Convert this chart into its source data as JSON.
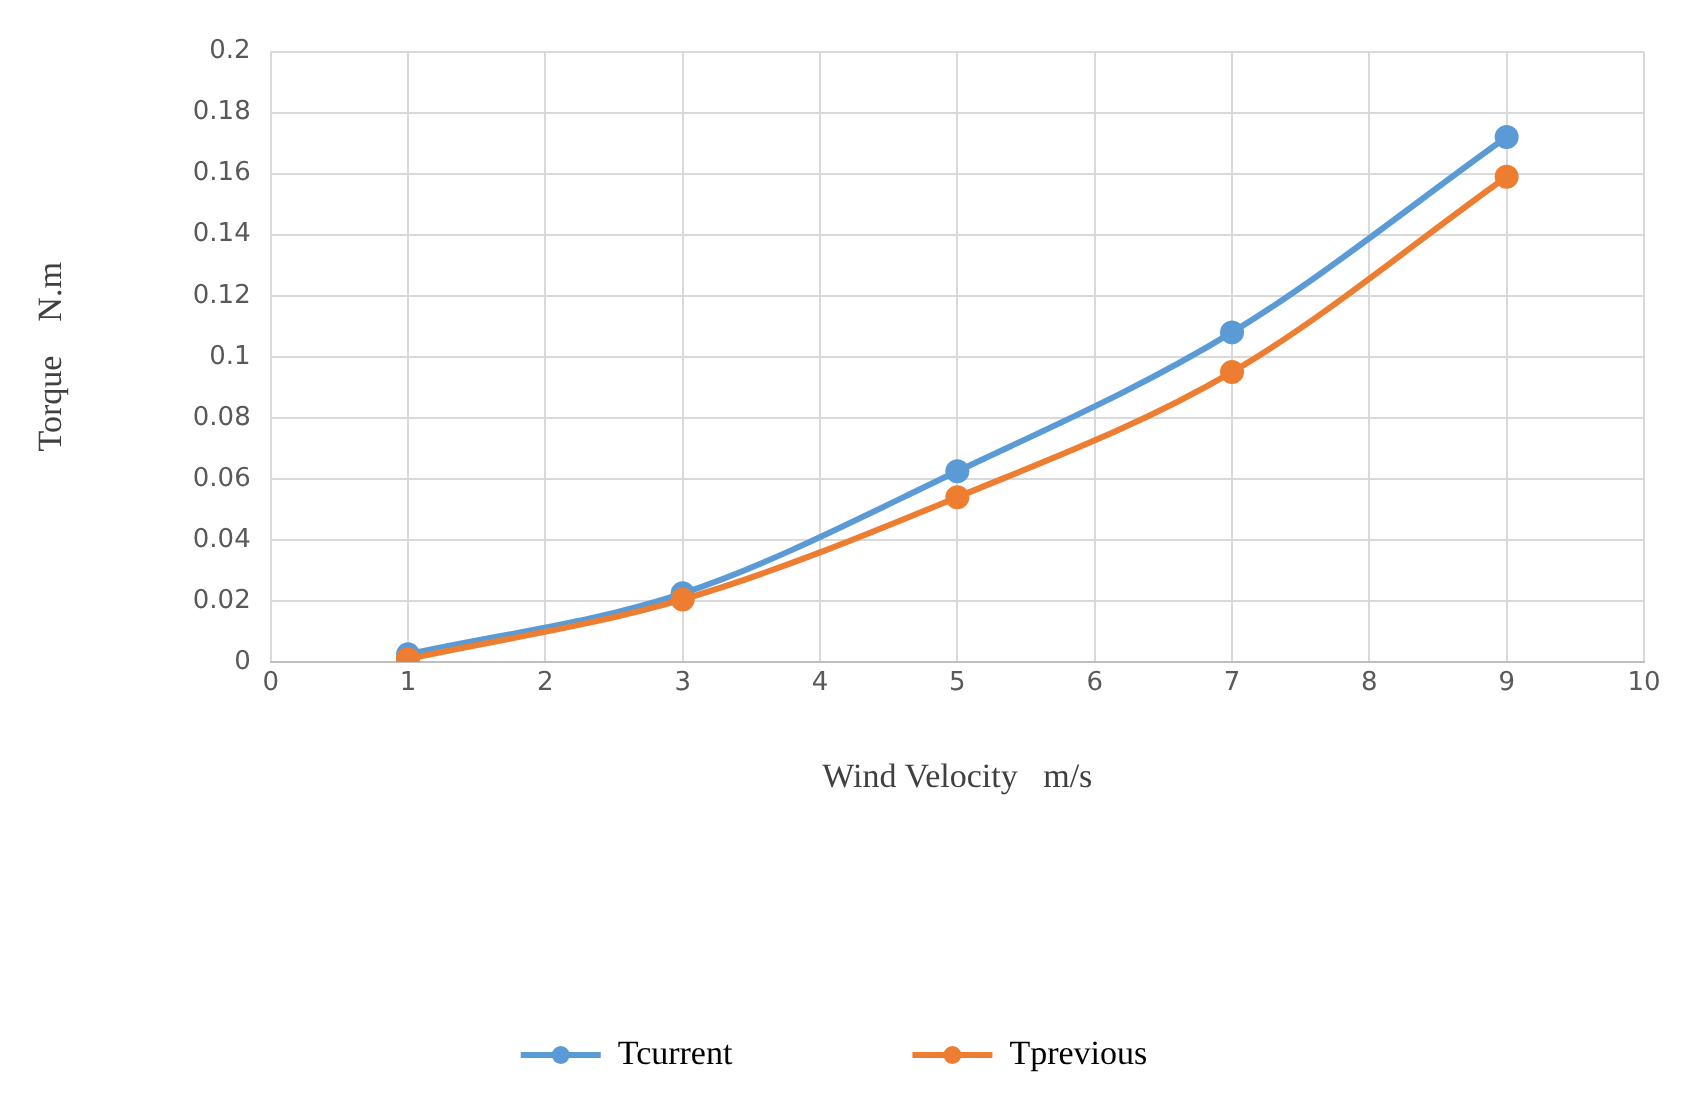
{
  "chart_data": {
    "type": "line",
    "xlabel": "Wind Velocity   m/s",
    "ylabel": "Torque    N.m",
    "x": [
      1,
      3,
      5,
      7,
      9
    ],
    "series": [
      {
        "name": "Tcurrent",
        "color": "#5b9bd5",
        "values": [
          0.0025,
          0.0225,
          0.0625,
          0.108,
          0.172
        ]
      },
      {
        "name": "Tprevious",
        "color": "#ed7d31",
        "values": [
          0.001,
          0.0205,
          0.054,
          0.095,
          0.159
        ]
      }
    ],
    "xlim": [
      0,
      10
    ],
    "xticks": [
      0,
      1,
      2,
      3,
      4,
      5,
      6,
      7,
      8,
      9,
      10
    ],
    "ylim": [
      0,
      0.2
    ],
    "yticks": [
      0,
      0.02,
      0.04,
      0.06,
      0.08,
      0.1,
      0.12,
      0.14,
      0.16,
      0.18,
      0.2
    ],
    "grid": true,
    "legend": "bottom",
    "marker": "circle",
    "line_style": "solid"
  }
}
